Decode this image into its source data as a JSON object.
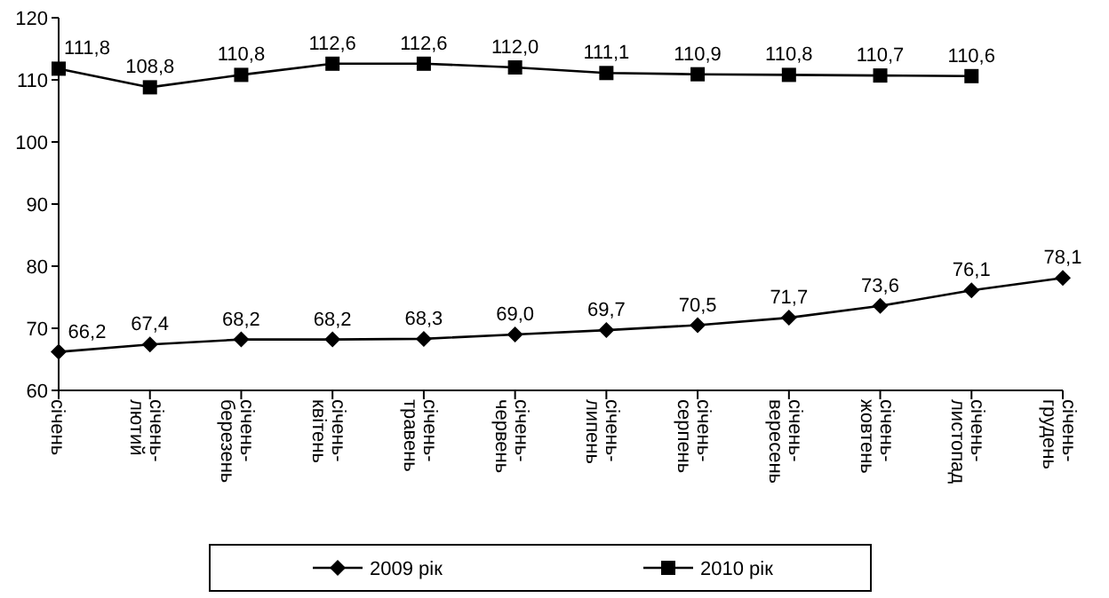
{
  "chart_data": {
    "type": "line",
    "categories": [
      "січень",
      "січень-лютий",
      "січень-березень",
      "січень-квітень",
      "січень-травень",
      "січень-червень",
      "січень-липень",
      "січень-серпень",
      "січень-вересень",
      "січень-жовтень",
      "січень-листопад",
      "січень-грудень"
    ],
    "series": [
      {
        "name": "2009 рік",
        "color": "#000000",
        "marker": "diamond",
        "values": [
          66.2,
          67.4,
          68.2,
          68.2,
          68.3,
          69.0,
          69.7,
          70.5,
          71.7,
          73.6,
          76.1,
          78.1
        ],
        "value_labels": [
          "66,2",
          "67,4",
          "68,2",
          "68,2",
          "68,3",
          "69,0",
          "69,7",
          "70,5",
          "71,7",
          "73,6",
          "76,1",
          "78,1"
        ]
      },
      {
        "name": "2010 рік",
        "color": "#000000",
        "marker": "square",
        "values": [
          111.8,
          108.8,
          110.8,
          112.6,
          112.6,
          112.0,
          111.1,
          110.9,
          110.8,
          110.7,
          110.6,
          null
        ],
        "value_labels": [
          "111,8",
          "108,8",
          "110,8",
          "112,6",
          "112,6",
          "112,0",
          "111,1",
          "110,9",
          "110,8",
          "110,7",
          "110,6",
          null
        ]
      }
    ],
    "ylim": [
      60,
      120
    ],
    "yticks": [
      60,
      70,
      80,
      90,
      100,
      110,
      120
    ],
    "grid": false,
    "legend": "bottom",
    "line_style": "solid"
  }
}
